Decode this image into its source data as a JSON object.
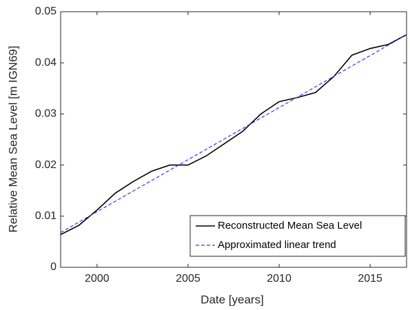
{
  "chart_data": {
    "type": "line",
    "xlabel": "Date [years]",
    "ylabel": "Relative Mean Sea Level [m IGN69]",
    "xlim": [
      1998,
      2017
    ],
    "xticks": [
      2000,
      2005,
      2010,
      2015
    ],
    "ylim": [
      0,
      0.05
    ],
    "yticks": [
      0,
      0.01,
      0.02,
      0.03,
      0.04,
      0.05
    ],
    "legend": "lower right",
    "series": [
      {
        "name": "Reconstructed Mean Sea Level",
        "color": "#000000",
        "dashed": false,
        "x": [
          1998,
          1999,
          2000,
          2001,
          2002,
          2003,
          2004,
          2005,
          2006,
          2007,
          2008,
          2009,
          2010,
          2011,
          2012,
          2013,
          2014,
          2015,
          2016,
          2017
        ],
        "values": [
          0.0064,
          0.0082,
          0.0112,
          0.0145,
          0.0168,
          0.0188,
          0.02,
          0.02,
          0.0218,
          0.0242,
          0.0266,
          0.03,
          0.0324,
          0.0332,
          0.0342,
          0.0373,
          0.0415,
          0.0428,
          0.0436,
          0.0455
        ]
      },
      {
        "name": "Approximated linear trend",
        "color": "#3333ff",
        "dashed": true,
        "x": [
          1998,
          2017
        ],
        "values": [
          0.0068,
          0.0455
        ]
      }
    ]
  }
}
